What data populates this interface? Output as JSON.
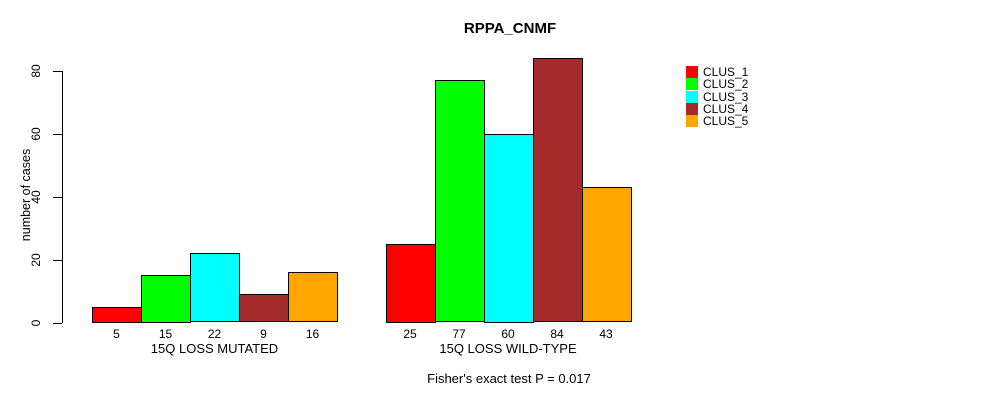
{
  "chart_data": {
    "type": "bar",
    "title": "RPPA_CNMF",
    "ylabel": "number of cases",
    "xlabel": "",
    "footer": "Fisher's exact test P = 0.017",
    "yticks": [
      0,
      20,
      40,
      60,
      80
    ],
    "ylim": [
      0,
      84
    ],
    "grid": false,
    "legend_position": "top-right",
    "series": [
      {
        "name": "CLUS_1",
        "color": "#FF0000"
      },
      {
        "name": "CLUS_2",
        "color": "#00FF00"
      },
      {
        "name": "CLUS_3",
        "color": "#00FFFF"
      },
      {
        "name": "CLUS_4",
        "color": "#A52A2A"
      },
      {
        "name": "CLUS_5",
        "color": "#FFA500"
      }
    ],
    "categories": [
      "15Q LOSS MUTATED",
      "15Q LOSS WILD-TYPE"
    ],
    "groups": [
      {
        "label": "15Q LOSS MUTATED",
        "values": [
          5,
          15,
          22,
          9,
          16
        ]
      },
      {
        "label": "15Q LOSS WILD-TYPE",
        "values": [
          25,
          77,
          60,
          84,
          43
        ]
      }
    ]
  }
}
